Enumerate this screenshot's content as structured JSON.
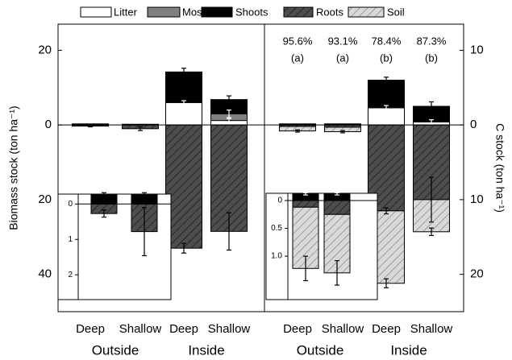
{
  "chart_data": [
    {
      "type": "bar",
      "stacked": true,
      "ylabel": "Biomass stock (ton ha⁻¹)",
      "yaxis_position": "left",
      "ylim": [
        -50,
        27
      ],
      "yticks": [
        20,
        0,
        {
          "value": -20,
          "label": "20"
        },
        {
          "value": -40,
          "label": "40"
        }
      ],
      "categories": [
        "Deep",
        "Shallow",
        "Deep",
        "Shallow"
      ],
      "groups": [
        "Outside",
        "Inside"
      ],
      "series": [
        {
          "name": "Litter",
          "color": "#ffffff",
          "values": [
            null,
            null,
            6,
            1.2
          ],
          "errors": [
            null,
            null,
            0.5,
            0.5
          ],
          "error_color": "#ffffff"
        },
        {
          "name": "Moss",
          "color": "#808080",
          "values": [
            null,
            null,
            null,
            1.8
          ],
          "errors": [
            null,
            null,
            null,
            1
          ],
          "error_color": "#ffffff"
        },
        {
          "name": "Shoots",
          "color": "#000000",
          "values": [
            0.3,
            0.2,
            8.2,
            3.8
          ],
          "errors": [
            null,
            null,
            1,
            1
          ],
          "error_color": "#000000"
        },
        {
          "name": "Roots",
          "color": "#4d4d4d",
          "hatch": true,
          "values": [
            -0.3,
            -1,
            -33,
            -28.5
          ],
          "errors": [
            0.2,
            0.5,
            1.3,
            5
          ],
          "error_color": "#000000"
        }
      ]
    },
    {
      "type": "bar",
      "stacked": true,
      "ylabel": "C stock (ton ha⁻¹)",
      "yaxis_position": "right",
      "ylim": [
        -25,
        13.5
      ],
      "yticks": [
        10,
        0,
        {
          "value": -10,
          "label": "10"
        },
        {
          "value": -20,
          "label": "20"
        }
      ],
      "categories": [
        "Deep",
        "Shallow",
        "Deep",
        "Shallow"
      ],
      "groups": [
        "Outside",
        "Inside"
      ],
      "annotations": [
        [
          "95.6%",
          "(a)"
        ],
        [
          "93.1%",
          "(a)"
        ],
        [
          "78.4%",
          "(b)"
        ],
        [
          "87.3%",
          "(b)"
        ]
      ],
      "series": [
        {
          "name": "Litter",
          "color": "#ffffff",
          "values": [
            null,
            null,
            2.3,
            0.4
          ],
          "errors": [
            null,
            null,
            0.3,
            0.3
          ],
          "error_color": "#ffffff"
        },
        {
          "name": "Shoots",
          "color": "#000000",
          "values": [
            0.15,
            0.15,
            3.7,
            2.1
          ],
          "errors": [
            null,
            null,
            0.4,
            0.6
          ],
          "error_color": "#000000"
        },
        {
          "name": "Roots",
          "color": "#4d4d4d",
          "hatch": true,
          "values": [
            -0.2,
            -0.3,
            -11.5,
            -10
          ],
          "errors": [
            null,
            null,
            0.4,
            3
          ],
          "error_color": "#000000"
        },
        {
          "name": "Soil",
          "color": "#d9d9d9",
          "hatch": true,
          "values": [
            -0.6,
            -0.6,
            -9.7,
            -4.3
          ],
          "errors": [
            0.15,
            0.15,
            0.6,
            0.5
          ],
          "error_color": "#000000"
        }
      ]
    },
    {
      "type": "bar",
      "stacked": true,
      "inset": true,
      "ylim": [
        -2.7,
        0.28
      ],
      "yticks": [
        0,
        {
          "value": -1,
          "label": "1"
        },
        {
          "value": -2,
          "label": "2"
        }
      ],
      "series": [
        {
          "color": "#000000",
          "values": [
            0.27,
            0.27
          ],
          "errors": [
            0.05,
            0.05
          ],
          "error_color": "#000000"
        },
        {
          "color": "#4d4d4d",
          "hatch": true,
          "values": [
            -0.27,
            -0.78
          ],
          "errors": [
            0.1,
            0.68
          ],
          "error_color": "#000000"
        }
      ]
    },
    {
      "type": "bar",
      "stacked": true,
      "inset": true,
      "ylim": [
        -1.78,
        0.13
      ],
      "yticks": [
        0,
        {
          "value": -0.5,
          "label": "0.5"
        },
        {
          "value": -1,
          "label": "1.0"
        }
      ],
      "series": [
        {
          "color": "#000000",
          "values": [
            0.12,
            0.12
          ],
          "errors": [
            0.02,
            0.02
          ],
          "error_color": "#ffffff"
        },
        {
          "color": "#4d4d4d",
          "hatch": true,
          "values": [
            -0.12,
            -0.25
          ],
          "errors": [
            null,
            null
          ],
          "error_color": "#000000"
        },
        {
          "color": "#d9d9d9",
          "hatch": true,
          "values": [
            -1.1,
            -1.05
          ],
          "errors": [
            0.22,
            0.22
          ],
          "error_color": "#000000"
        }
      ]
    }
  ]
}
